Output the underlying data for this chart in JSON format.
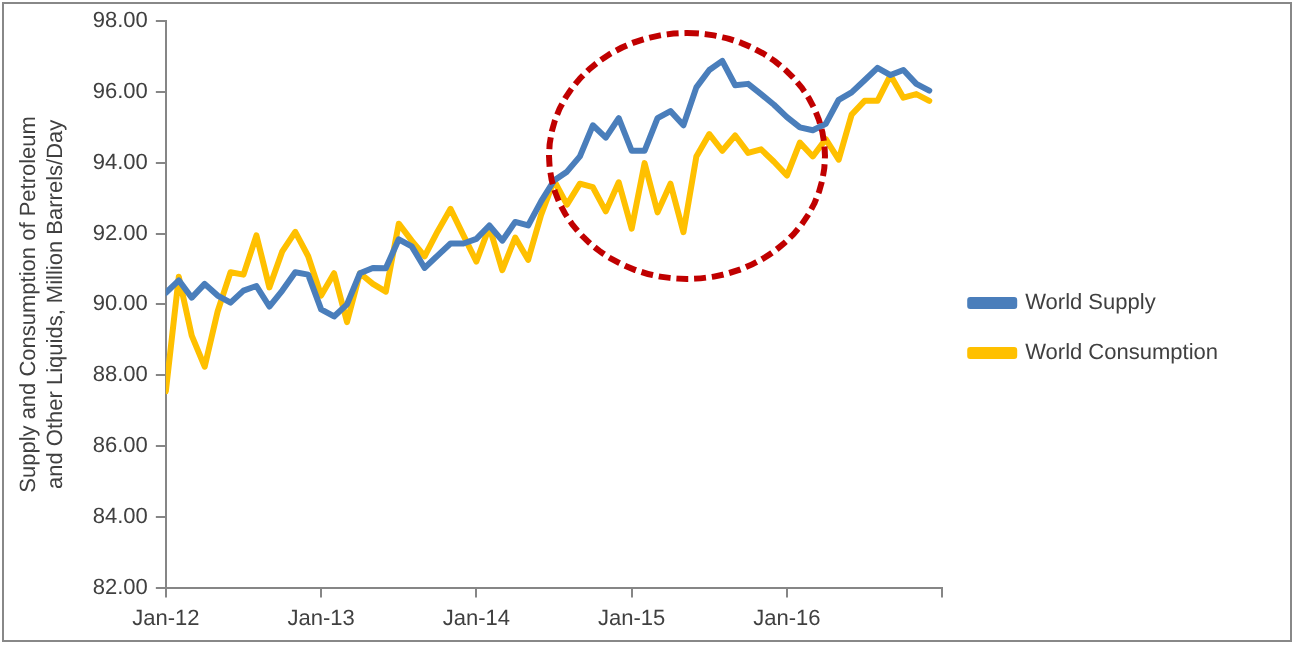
{
  "chart_data": {
    "type": "line",
    "ylabel": "Supply and Consumption of Petroleum and Other Liquids, Million Barrels/Day",
    "x": [
      "2012-01",
      "2012-02",
      "2012-03",
      "2012-04",
      "2012-05",
      "2012-06",
      "2012-07",
      "2012-08",
      "2012-09",
      "2012-10",
      "2012-11",
      "2012-12",
      "2013-01",
      "2013-02",
      "2013-03",
      "2013-04",
      "2013-05",
      "2013-06",
      "2013-07",
      "2013-08",
      "2013-09",
      "2013-10",
      "2013-11",
      "2013-12",
      "2014-01",
      "2014-02",
      "2014-03",
      "2014-04",
      "2014-05",
      "2014-06",
      "2014-07",
      "2014-08",
      "2014-09",
      "2014-10",
      "2014-11",
      "2014-12",
      "2015-01",
      "2015-02",
      "2015-03",
      "2015-04",
      "2015-05",
      "2015-06",
      "2015-07",
      "2015-08",
      "2015-09",
      "2015-10",
      "2015-11",
      "2015-12",
      "2016-01",
      "2016-02",
      "2016-03",
      "2016-04",
      "2016-05",
      "2016-06",
      "2016-07",
      "2016-08",
      "2016-09",
      "2016-10",
      "2016-11",
      "2016-12"
    ],
    "series": [
      {
        "name": "World Supply",
        "color": "#4a7ebb",
        "values": [
          90.33,
          90.68,
          90.19,
          90.58,
          90.25,
          90.05,
          90.39,
          90.52,
          89.94,
          90.39,
          90.91,
          90.84,
          89.86,
          89.66,
          90.0,
          90.88,
          91.03,
          91.02,
          91.84,
          91.64,
          91.03,
          91.38,
          91.72,
          91.72,
          91.85,
          92.23,
          91.8,
          92.33,
          92.23,
          92.91,
          93.5,
          93.75,
          94.18,
          95.06,
          94.71,
          95.26,
          94.34,
          94.34,
          95.26,
          95.46,
          95.06,
          96.13,
          96.62,
          96.88,
          96.19,
          96.23,
          95.94,
          95.64,
          95.29,
          95.0,
          94.92,
          95.1,
          95.78,
          95.99,
          96.33,
          96.68,
          96.48,
          96.62,
          96.23,
          96.04
        ]
      },
      {
        "name": "World Consumption",
        "color": "#ffc000",
        "values": [
          87.55,
          90.78,
          89.12,
          88.24,
          89.8,
          90.91,
          90.84,
          91.95,
          90.48,
          91.5,
          92.05,
          91.36,
          90.25,
          90.88,
          89.5,
          90.88,
          90.58,
          90.36,
          92.28,
          91.8,
          91.36,
          92.06,
          92.7,
          91.95,
          91.21,
          92.19,
          90.97,
          91.89,
          91.26,
          92.53,
          93.5,
          92.82,
          93.41,
          93.31,
          92.63,
          93.45,
          92.14,
          93.99,
          92.6,
          93.41,
          92.04,
          94.18,
          94.81,
          94.34,
          94.77,
          94.28,
          94.38,
          94.03,
          93.64,
          94.57,
          94.18,
          94.67,
          94.09,
          95.36,
          95.75,
          95.75,
          96.47,
          95.84,
          95.94,
          95.75
        ]
      }
    ],
    "xlim": [
      "2012-01",
      "2017-01"
    ],
    "xticks": [
      {
        "value": "2012-01",
        "label": "Jan-12"
      },
      {
        "value": "2013-01",
        "label": "Jan-13"
      },
      {
        "value": "2014-01",
        "label": "Jan-14"
      },
      {
        "value": "2015-01",
        "label": "Jan-15"
      },
      {
        "value": "2016-01",
        "label": "Jan-16"
      },
      {
        "value": "2017-01",
        "label": null
      }
    ],
    "ylim": [
      82,
      98
    ],
    "yticks": [
      {
        "value": 82,
        "label": "82.00"
      },
      {
        "value": 84,
        "label": "84.00"
      },
      {
        "value": 86,
        "label": "86.00"
      },
      {
        "value": 88,
        "label": "88.00"
      },
      {
        "value": 90,
        "label": "90.00"
      },
      {
        "value": 92,
        "label": "92.00"
      },
      {
        "value": 94,
        "label": "94.00"
      },
      {
        "value": 96,
        "label": "96.00"
      },
      {
        "value": 98,
        "label": "98.00"
      }
    ],
    "grid": false,
    "legend": "right",
    "marker": "none",
    "line_style": "solid"
  }
}
